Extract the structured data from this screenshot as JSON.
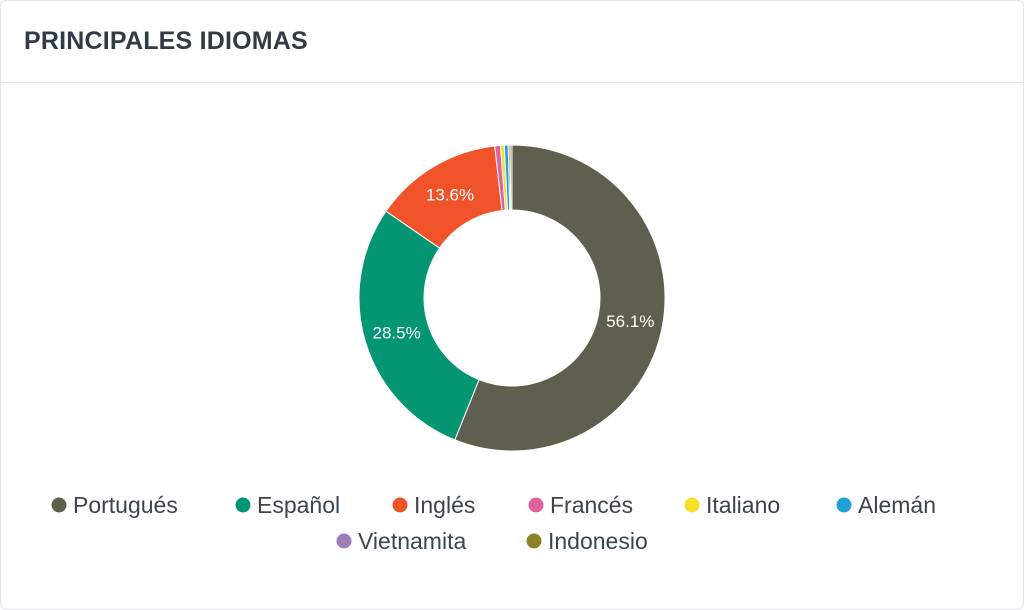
{
  "header": {
    "title": "PRINCIPALES IDIOMAS"
  },
  "chart_data": {
    "type": "pie",
    "donut": true,
    "title": "PRINCIPALES IDIOMAS",
    "legend_position": "bottom",
    "categories": [
      "Portugués",
      "Español",
      "Inglés",
      "Francés",
      "Italiano",
      "Alemán",
      "Vietnamita",
      "Indonesio"
    ],
    "values": [
      56.1,
      28.5,
      13.6,
      0.6,
      0.4,
      0.4,
      0.2,
      0.2
    ],
    "data_labels": [
      "56.1%",
      "28.5%",
      "13.6%",
      "",
      "",
      "",
      "",
      ""
    ],
    "colors": [
      "#5f5f4f",
      "#049572",
      "#f0522a",
      "#e1609f",
      "#f7e02a",
      "#1fa0d6",
      "#9b7fb6",
      "#8a832a"
    ]
  }
}
